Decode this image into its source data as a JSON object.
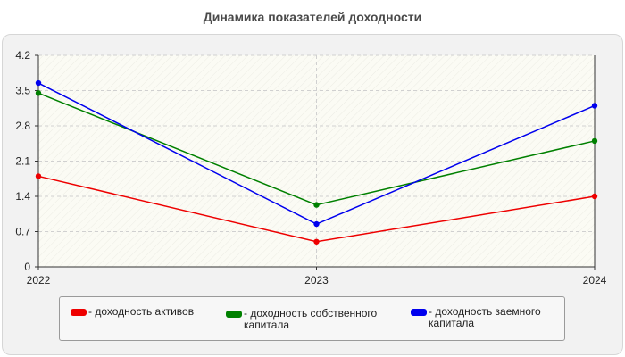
{
  "chart_data": {
    "type": "line",
    "title": "Динамика показателей доходности",
    "categories": [
      "2022",
      "2023",
      "2024"
    ],
    "series": [
      {
        "name": "- доходность активов",
        "color": "#ee0000",
        "values": [
          1.8,
          0.5,
          1.4
        ]
      },
      {
        "name": "- доходность собственного капитала",
        "color": "#008000",
        "values": [
          3.45,
          1.23,
          2.5
        ]
      },
      {
        "name": "- доходность заемного капитала",
        "color": "#0000ee",
        "values": [
          3.65,
          0.85,
          3.2
        ]
      }
    ],
    "yticks": [
      "0",
      "0.7",
      "1.4",
      "2.1",
      "2.8",
      "3.5",
      "4.2"
    ],
    "ylim": [
      0,
      4.2
    ],
    "grid": true,
    "legend": "bottom"
  }
}
